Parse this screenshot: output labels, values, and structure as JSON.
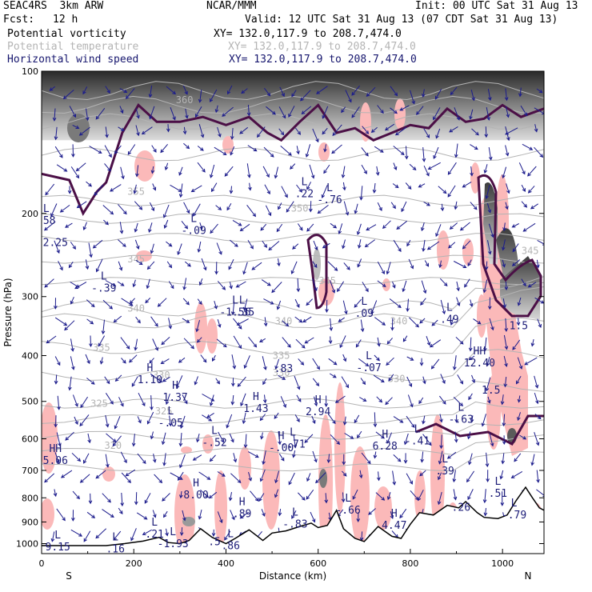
{
  "header": {
    "model": "SEAC4RS  3km ARW",
    "center": "NCAR/MMM",
    "init": "Init: 00 UTC Sat 31 Aug 13",
    "fcst_label": "Fcst:",
    "fcst_value": "12 h",
    "valid": "Valid: 12 UTC Sat 31 Aug 13 (07 CDT Sat 31 Aug 13)",
    "fields": [
      {
        "name": "Potential vorticity",
        "xy": "XY= 132.0,117.9 to 208.7,474.0",
        "color": "#000000"
      },
      {
        "name": "Potential temperature",
        "xy": "XY= 132.0,117.9 to 208.7,474.0",
        "color": "#b4b4b4"
      },
      {
        "name": "Horizontal wind speed",
        "xy": "XY= 132.0,117.9 to 208.7,474.0",
        "color": "#16166e"
      }
    ]
  },
  "chart_data": {
    "type": "cross-section",
    "xlabel": "Distance (km)",
    "ylabel": "Pressure (hPa)",
    "xlim": [
      0,
      1090
    ],
    "ylim": [
      1050,
      100
    ],
    "y_scale": "log",
    "x_ticks": [
      0,
      200,
      400,
      600,
      800,
      1000
    ],
    "y_ticks": [
      100,
      200,
      300,
      400,
      500,
      600,
      700,
      800,
      900,
      1000
    ],
    "end_labels": {
      "left": "S",
      "right": "N"
    },
    "colors": {
      "theta": "#b4b4b4",
      "pv_contour": "#4b0f46",
      "pv_shade": "#fbb9b9",
      "wind_vectors": "#1c1c8c",
      "hl_labels": "#1c1c78",
      "terrain": "#000000"
    },
    "theta_contours": [
      {
        "value": "360",
        "x": 310,
        "p": 115
      },
      {
        "value": "355",
        "x": 205,
        "p": 180
      },
      {
        "value": "350",
        "x": 560,
        "p": 195
      },
      {
        "value": "345",
        "x": 205,
        "p": 250
      },
      {
        "value": "345",
        "x": 620,
        "p": 278
      },
      {
        "value": "345",
        "x": 1060,
        "p": 240
      },
      {
        "value": "340",
        "x": 205,
        "p": 318
      },
      {
        "value": "340",
        "x": 525,
        "p": 338
      },
      {
        "value": "340",
        "x": 775,
        "p": 338
      },
      {
        "value": "335",
        "x": 130,
        "p": 385
      },
      {
        "value": "335",
        "x": 520,
        "p": 400
      },
      {
        "value": "330",
        "x": 260,
        "p": 440
      },
      {
        "value": "330",
        "x": 770,
        "p": 448
      },
      {
        "value": "330",
        "x": 520,
        "p": 435
      },
      {
        "value": "325",
        "x": 125,
        "p": 505
      },
      {
        "value": "325",
        "x": 265,
        "p": 525
      },
      {
        "value": "320",
        "x": 155,
        "p": 620
      }
    ],
    "extrema": [
      {
        "type": "L",
        "value": ".58",
        "x": 10,
        "p": 205
      },
      {
        "type": "",
        "value": "2.25",
        "x": 30,
        "p": 228
      },
      {
        "type": "L",
        "value": "-.39",
        "x": 135,
        "p": 285
      },
      {
        "type": "L",
        "value": "-.09",
        "x": 330,
        "p": 215
      },
      {
        "type": "L",
        "value": "-1.56",
        "x": 420,
        "p": 320
      },
      {
        "type": "L",
        "value": "-.35",
        "x": 435,
        "p": 320
      },
      {
        "type": "L",
        "value": ".22",
        "x": 570,
        "p": 180
      },
      {
        "type": "L",
        "value": "-.76",
        "x": 625,
        "p": 185
      },
      {
        "type": "L",
        "value": ".09",
        "x": 700,
        "p": 322
      },
      {
        "type": "L",
        "value": ".49",
        "x": 885,
        "p": 332
      },
      {
        "type": "",
        "value": "1.5",
        "x": 1035,
        "p": 342
      },
      {
        "type": "HH",
        "value": "12.40",
        "x": 950,
        "p": 410
      },
      {
        "type": "",
        "value": "1.5",
        "x": 975,
        "p": 468
      },
      {
        "type": "L",
        "value": "-.63",
        "x": 910,
        "p": 540
      },
      {
        "type": "L",
        "value": "-.07",
        "x": 710,
        "p": 420
      },
      {
        "type": "",
        "value": ".83",
        "x": 525,
        "p": 422
      },
      {
        "type": "H",
        "value": "1.10",
        "x": 235,
        "p": 445
      },
      {
        "type": "H",
        "value": "1.37",
        "x": 290,
        "p": 485
      },
      {
        "type": "H",
        "value": "1.43",
        "x": 465,
        "p": 512
      },
      {
        "type": "H",
        "value": "2.94",
        "x": 600,
        "p": 520
      },
      {
        "type": "L",
        "value": "-.05",
        "x": 280,
        "p": 550
      },
      {
        "type": "L",
        "value": "-.52",
        "x": 375,
        "p": 605
      },
      {
        "type": "H",
        "value": "-.00",
        "x": 520,
        "p": 620
      },
      {
        "type": "L",
        "value": "-.71",
        "x": 545,
        "p": 610
      },
      {
        "type": "H",
        "value": "6.28",
        "x": 745,
        "p": 615
      },
      {
        "type": "L",
        "value": "-.41",
        "x": 815,
        "p": 600
      },
      {
        "type": "HH",
        "value": "5.06",
        "x": 30,
        "p": 660
      },
      {
        "type": "L",
        "value": ".39",
        "x": 875,
        "p": 695
      },
      {
        "type": "H",
        "value": "8.00",
        "x": 335,
        "p": 780
      },
      {
        "type": "L",
        "value": ".51",
        "x": 990,
        "p": 775
      },
      {
        "type": "H",
        "value": ".89",
        "x": 435,
        "p": 855
      },
      {
        "type": "L",
        "value": "-.66",
        "x": 665,
        "p": 840
      },
      {
        "type": "",
        "value": ".26",
        "x": 910,
        "p": 830
      },
      {
        "type": "L",
        "value": "-.79",
        "x": 1025,
        "p": 860
      },
      {
        "type": "L",
        "value": "-.83",
        "x": 550,
        "p": 900
      },
      {
        "type": "H",
        "value": "4.47",
        "x": 765,
        "p": 905
      },
      {
        "type": "L",
        "value": ".21",
        "x": 245,
        "p": 945
      },
      {
        "type": "L",
        "value": "-1.93",
        "x": 285,
        "p": 990
      },
      {
        "type": "",
        "value": ".5",
        "x": 375,
        "p": 980
      },
      {
        "type": "L",
        "value": ".86",
        "x": 410,
        "p": 1000
      },
      {
        "type": "L",
        "value": "9.15",
        "x": 35,
        "p": 1005
      },
      {
        "type": "L",
        "value": ".16",
        "x": 160,
        "p": 1015
      }
    ],
    "terrain_profile": [
      [
        0,
        1010
      ],
      [
        140,
        1010
      ],
      [
        180,
        1000
      ],
      [
        220,
        988
      ],
      [
        255,
        970
      ],
      [
        275,
        995
      ],
      [
        300,
        1000
      ],
      [
        320,
        985
      ],
      [
        345,
        930
      ],
      [
        370,
        970
      ],
      [
        400,
        1000
      ],
      [
        420,
        975
      ],
      [
        450,
        935
      ],
      [
        480,
        985
      ],
      [
        500,
        950
      ],
      [
        530,
        940
      ],
      [
        560,
        920
      ],
      [
        585,
        905
      ],
      [
        600,
        925
      ],
      [
        620,
        915
      ],
      [
        640,
        850
      ],
      [
        655,
        930
      ],
      [
        680,
        975
      ],
      [
        700,
        990
      ],
      [
        730,
        920
      ],
      [
        760,
        965
      ],
      [
        780,
        975
      ],
      [
        800,
        910
      ],
      [
        820,
        860
      ],
      [
        850,
        870
      ],
      [
        880,
        830
      ],
      [
        905,
        840
      ],
      [
        920,
        815
      ],
      [
        945,
        860
      ],
      [
        960,
        880
      ],
      [
        990,
        885
      ],
      [
        1010,
        870
      ],
      [
        1030,
        810
      ],
      [
        1050,
        760
      ],
      [
        1065,
        800
      ],
      [
        1080,
        840
      ],
      [
        1090,
        850
      ]
    ]
  }
}
